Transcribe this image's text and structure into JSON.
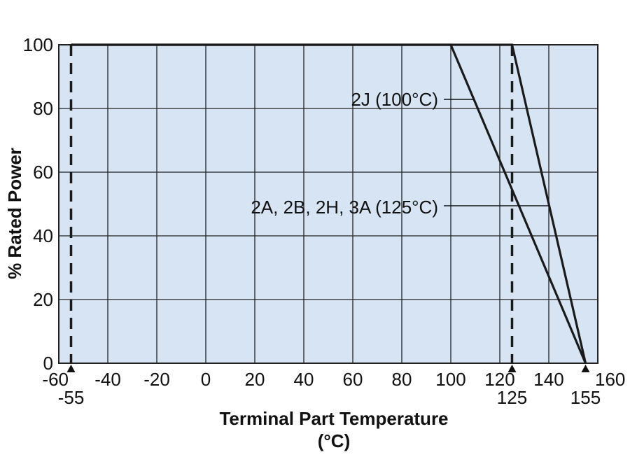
{
  "chart_data": {
    "type": "line",
    "title": "",
    "xlabel": "Terminal Part Temperature",
    "xlabel_unit": "(°C)",
    "ylabel": "% Rated Power",
    "xlim": [
      -60,
      160
    ],
    "ylim": [
      0,
      100
    ],
    "x_ticks": [
      "-60",
      "-40",
      "-20",
      "0",
      "20",
      "40",
      "60",
      "80",
      "100",
      "120",
      "140",
      "160"
    ],
    "y_ticks": [
      "0",
      "20",
      "40",
      "60",
      "80",
      "100"
    ],
    "grid": true,
    "background_color": "#d6e4f4",
    "line_color": "#1a1a1a",
    "series": [
      {
        "name": "2J (100°C)",
        "x": [
          -55,
          100,
          155
        ],
        "y": [
          100,
          100,
          0
        ]
      },
      {
        "name": "2A, 2B, 2H, 3A (125°C)",
        "x": [
          -55,
          125,
          155
        ],
        "y": [
          100,
          100,
          0
        ]
      }
    ],
    "markers": [
      {
        "label": "-55",
        "x": -55
      },
      {
        "label": "125",
        "x": 125
      },
      {
        "label": "155",
        "x": 155
      }
    ],
    "dashed_lines_x": [
      -55,
      125
    ]
  }
}
